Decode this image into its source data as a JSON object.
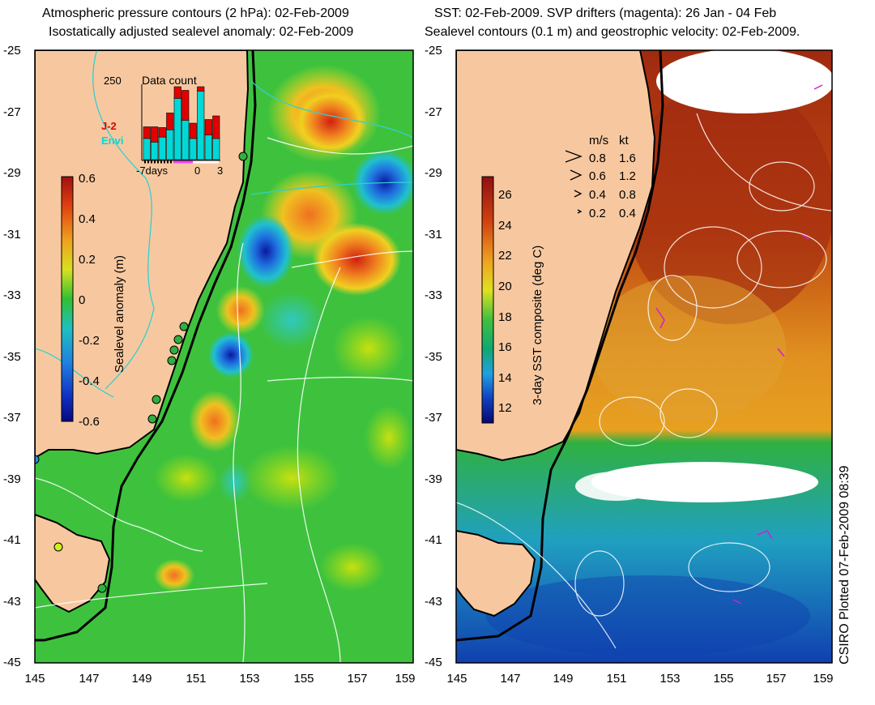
{
  "left": {
    "title1": "Atmospheric pressure contours (2 hPa): 02-Feb-2009",
    "title2": "Isostatically adjusted sealevel anomaly: 02-Feb-2009",
    "colorbar_label": "Sealevel anomaly (m)",
    "colorbar_ticks": [
      "0.6",
      "0.4",
      "0.2",
      "0",
      "-0.2",
      "-0.4",
      "-0.6"
    ],
    "inset": {
      "title": "Data count",
      "max": "250",
      "xticks": [
        "-7days",
        "0",
        "3"
      ],
      "legend": [
        {
          "name": "J-2",
          "color": "#e00000"
        },
        {
          "name": "Envi",
          "color": "#00d8d8"
        }
      ],
      "bars": [
        {
          "j2": 0.15,
          "envi": 0.3
        },
        {
          "j2": 0.2,
          "envi": 0.25
        },
        {
          "j2": 0.12,
          "envi": 0.32
        },
        {
          "j2": 0.22,
          "envi": 0.42
        },
        {
          "j2": 0.55,
          "envi": 0.85
        },
        {
          "j2": 0.4,
          "envi": 0.55
        },
        {
          "j2": 0.2,
          "envi": 0.3
        },
        {
          "j2": 0.35,
          "envi": 0.95
        },
        {
          "j2": 0.2,
          "envi": 0.35
        },
        {
          "j2": 0.3,
          "envi": 0.3
        }
      ]
    }
  },
  "right": {
    "title1": "SST: 02-Feb-2009. SVP drifters (magenta): 26 Jan - 04 Feb",
    "title2": "Sealevel contours (0.1 m) and geostrophic velocity: 02-Feb-2009.",
    "colorbar_label": "3-day SST composite (deg C)",
    "colorbar_ticks": [
      "26",
      "24",
      "22",
      "20",
      "18",
      "16",
      "14",
      "12"
    ],
    "velocity_legend": {
      "header": [
        "m/s",
        "kt"
      ],
      "rows": [
        [
          "0.8",
          "1.6"
        ],
        [
          "0.6",
          "1.2"
        ],
        [
          "0.4",
          "0.8"
        ],
        [
          "0.2",
          "0.4"
        ]
      ]
    }
  },
  "axes": {
    "lat_ticks": [
      "-25",
      "-27",
      "-29",
      "-31",
      "-33",
      "-35",
      "-37",
      "-39",
      "-41",
      "-43",
      "-45"
    ],
    "lon_ticks": [
      "145",
      "147",
      "149",
      "151",
      "153",
      "155",
      "157",
      "159"
    ]
  },
  "footer": "CSIRO Plotted 07-Feb-2009 08:39",
  "colors": {
    "land": "#f7c8a0",
    "ocean_green": "#3ec23e",
    "coast": "#000000"
  }
}
